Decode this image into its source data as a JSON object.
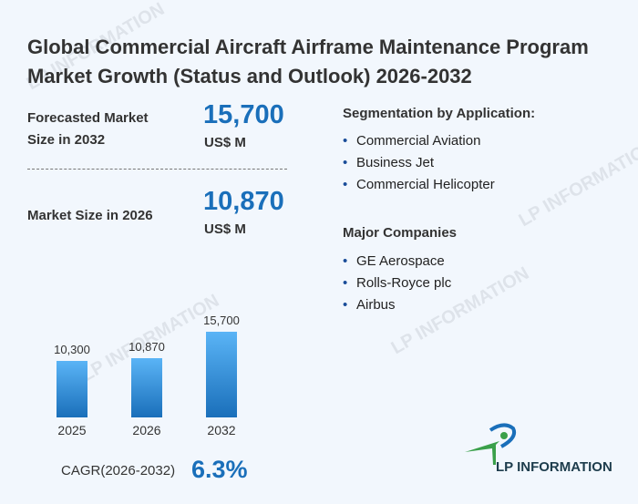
{
  "title": "Global Commercial Aircraft Airframe Maintenance Program Market Growth (Status and Outlook) 2026-2032",
  "forecast": {
    "label_line1": "Forecasted Market",
    "label_line2": "Size in 2032",
    "value": "15,700",
    "unit": "US$ M"
  },
  "current": {
    "label": "Market Size in 2026",
    "value": "10,870",
    "unit": "US$ M"
  },
  "segmentation": {
    "heading": "Segmentation by Application:",
    "items": [
      "Commercial Aviation",
      "Business Jet",
      "Commercial Helicopter"
    ]
  },
  "companies": {
    "heading": "Major Companies",
    "items": [
      "GE Aerospace",
      "Rolls-Royce plc",
      "Airbus"
    ]
  },
  "cagr": {
    "label": "CAGR(2026-2032)",
    "value": "6.3%"
  },
  "logo": {
    "text": "LP INFORMATION"
  },
  "watermark": "LP INFORMATION",
  "chart_data": {
    "type": "bar",
    "categories": [
      "2025",
      "2026",
      "2032"
    ],
    "values": [
      10300,
      10870,
      15700
    ],
    "value_labels": [
      "10,300",
      "10,870",
      "15,700"
    ],
    "ylim": [
      0,
      15700
    ],
    "color": "#1a6fba"
  }
}
